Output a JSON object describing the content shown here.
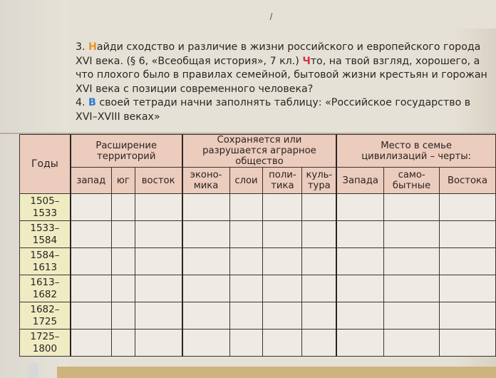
{
  "task3": {
    "num": "3. ",
    "initial1": "Н",
    "part1": "айди сходство и различие в жизни российского и европейского города XVI века. (§ 6, «Всеобщая история», 7 кл.) ",
    "initial2": "Ч",
    "part2": "то, на твой взгляд, хорошего, а что плохого было в правилах семейной, бытовой жизни крестьян и горожан XVI века с позиции современного человека?"
  },
  "task4": {
    "num": "4. ",
    "initial": "В",
    "text": " своей тетради начни заполнять таблицу: «Российское государство в XVI–XVIII веках»"
  },
  "colors": {
    "header_bg": "#ecccbd",
    "year_bg": "#efecc3",
    "initial_orange": "#e8922a",
    "initial_red": "#d8304a",
    "initial_blue": "#2f7ad0"
  },
  "table": {
    "years_header": "Годы",
    "groups": [
      "Расширение территорий",
      "Сохраняется или разрушается аграрное общество",
      "Место в семье цивилизаций – черты:"
    ],
    "subheaders": [
      "запад",
      "юг",
      "восток",
      "эконо-мика",
      "слои",
      "поли-тика",
      "куль-тура",
      "Запада",
      "само-бытные",
      "Востока"
    ],
    "rows": [
      "1505–1533",
      "1533–1584",
      "1584–1613",
      "1613–1682",
      "1682–1725",
      "1725–1800"
    ]
  }
}
